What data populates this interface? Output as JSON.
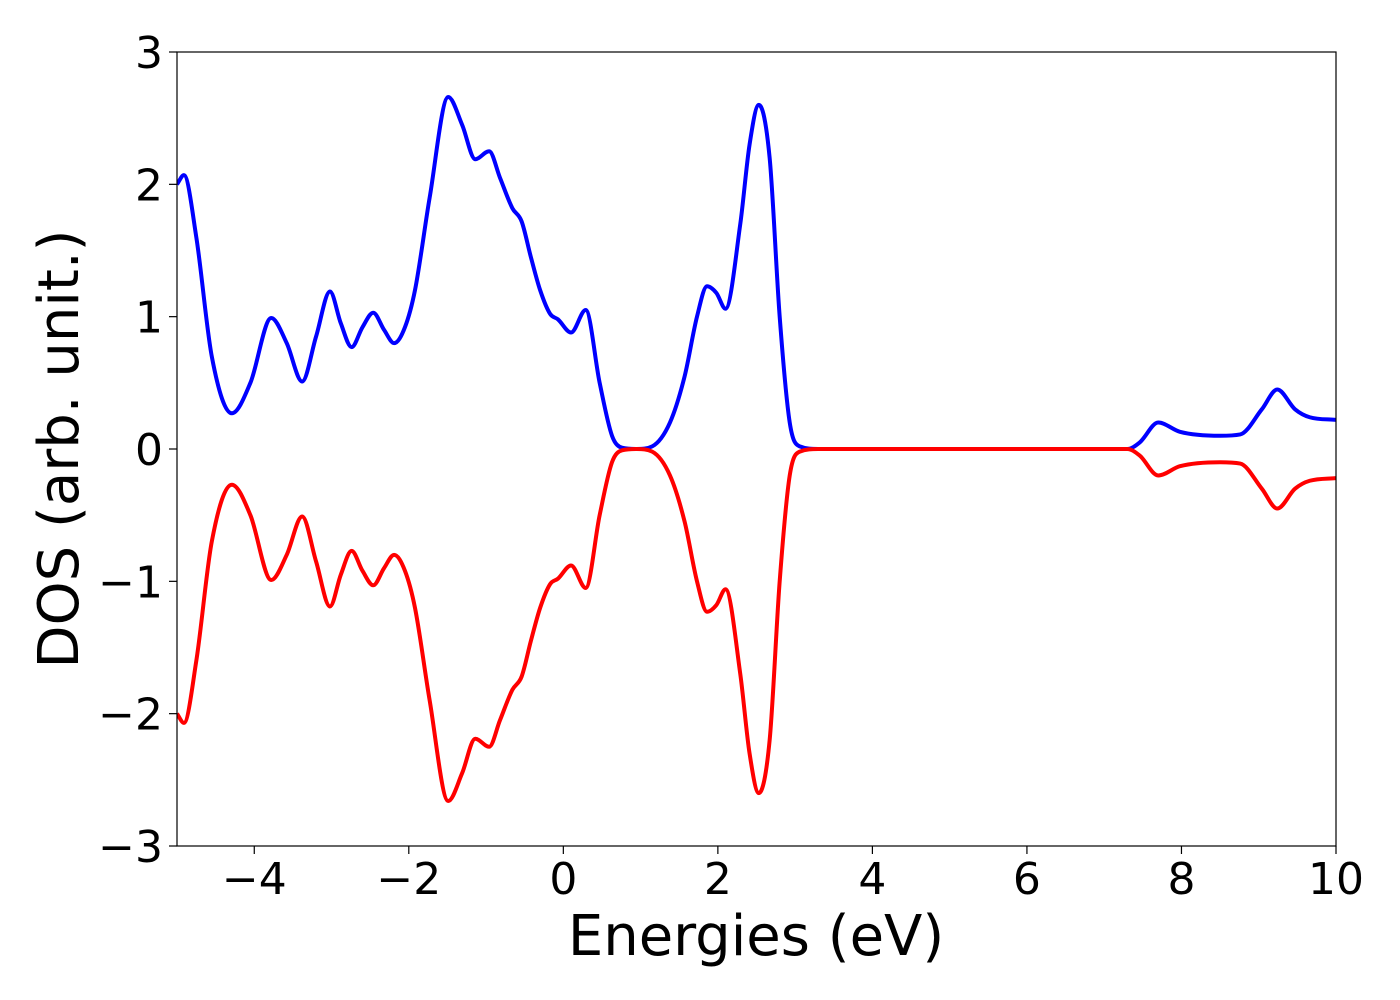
{
  "chart_data": {
    "type": "line",
    "x_label": "Energies (eV)",
    "y_label": "DOS (arb. unit.)",
    "xlim": [
      -5,
      10
    ],
    "ylim": [
      -3,
      3
    ],
    "xticks": [
      {
        "value": -4,
        "label": "−4"
      },
      {
        "value": -2,
        "label": "−2"
      },
      0,
      2,
      4,
      6,
      8,
      10
    ],
    "yticks": [
      {
        "value": -3,
        "label": "−3"
      },
      {
        "value": -2,
        "label": "−2"
      },
      {
        "value": -1,
        "label": "−1"
      },
      0,
      1,
      2,
      3
    ],
    "grid": false,
    "x": [
      -5,
      -4.91,
      -4.75,
      -4.55,
      -4.29,
      -4.05,
      -3.78,
      -3.58,
      -3.38,
      -3.2,
      -3.02,
      -2.88,
      -2.74,
      -2.6,
      -2.46,
      -2.32,
      -2.19,
      -2.05,
      -1.92,
      -1.73,
      -1.49,
      -1.31,
      -1.14,
      -0.96,
      -0.82,
      -0.66,
      -0.54,
      -0.42,
      -0.3,
      -0.17,
      -0.07,
      0.1,
      0.29,
      0.47,
      0.63,
      0.76,
      0.95,
      1.15,
      1.38,
      1.57,
      1.73,
      1.86,
      1.98,
      2.1,
      2.29,
      2.41,
      2.53,
      2.67,
      2.8,
      2.93,
      3.06,
      3.3,
      5,
      7.3,
      7.46,
      7.7,
      7.98,
      8.5,
      8.76,
      9.04,
      9.24,
      9.47,
      9.66,
      10
    ],
    "series": [
      {
        "color": "#0000ff",
        "values": [
          2.0,
          2.07,
          1.6,
          0.7,
          0.27,
          0.5,
          0.99,
          0.8,
          0.51,
          0.85,
          1.19,
          0.95,
          0.77,
          0.92,
          1.03,
          0.9,
          0.8,
          0.92,
          1.2,
          1.9,
          2.66,
          2.45,
          2.19,
          2.25,
          2.05,
          1.82,
          1.72,
          1.45,
          1.2,
          1.02,
          0.98,
          0.88,
          1.05,
          0.5,
          0.1,
          0.01,
          0,
          0.02,
          0.2,
          0.55,
          1.0,
          1.23,
          1.18,
          1.06,
          1.7,
          2.3,
          2.6,
          2.2,
          1.0,
          0.2,
          0.02,
          0,
          0,
          0,
          0.05,
          0.2,
          0.13,
          0.1,
          0.11,
          0.3,
          0.45,
          0.3,
          0.24,
          0.22
        ]
      },
      {
        "color": "#ff0000",
        "values": [
          -2.0,
          -2.07,
          -1.6,
          -0.7,
          -0.27,
          -0.5,
          -0.99,
          -0.8,
          -0.51,
          -0.85,
          -1.19,
          -0.95,
          -0.77,
          -0.92,
          -1.03,
          -0.9,
          -0.8,
          -0.92,
          -1.2,
          -1.9,
          -2.66,
          -2.45,
          -2.19,
          -2.25,
          -2.05,
          -1.82,
          -1.72,
          -1.45,
          -1.2,
          -1.02,
          -0.98,
          -0.88,
          -1.05,
          -0.5,
          -0.1,
          -0.01,
          0,
          -0.02,
          -0.2,
          -0.55,
          -1.0,
          -1.23,
          -1.18,
          -1.06,
          -1.7,
          -2.3,
          -2.6,
          -2.2,
          -1.0,
          -0.2,
          -0.02,
          0,
          0,
          0,
          -0.05,
          -0.2,
          -0.13,
          -0.1,
          -0.11,
          -0.3,
          -0.45,
          -0.3,
          -0.24,
          -0.22
        ]
      }
    ]
  }
}
